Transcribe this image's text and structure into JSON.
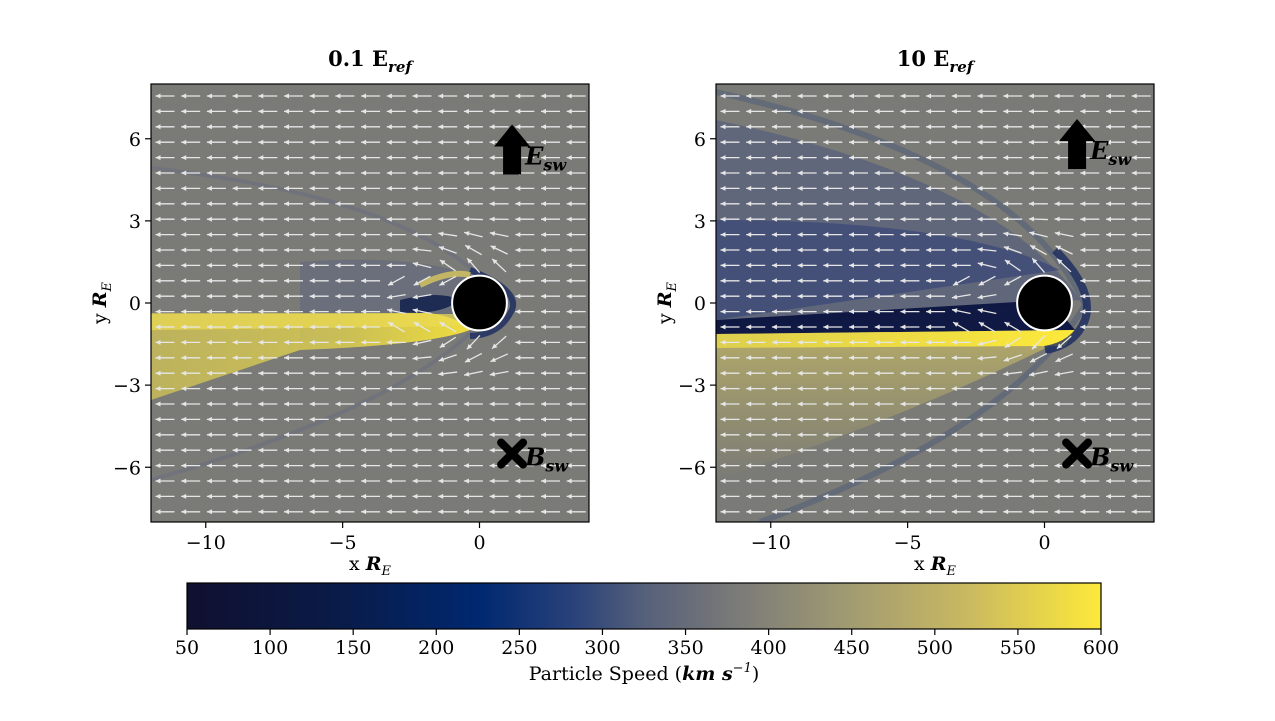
{
  "chart_data": [
    {
      "type": "heatmap",
      "title": "0.1 E_ref",
      "title_main": "0.1 E",
      "title_sub": "ref",
      "xlabel_prefix": "x",
      "xlabel_main": "R",
      "xlabel_sub": "E",
      "ylabel_prefix": "y",
      "ylabel_main": "R",
      "ylabel_sub": "E",
      "xlim": [
        -12,
        4
      ],
      "ylim": [
        -8,
        8
      ],
      "xticks": [
        -10,
        -5,
        0
      ],
      "xtick_labels": [
        "−10",
        "−5",
        "0"
      ],
      "yticks": [
        6,
        3,
        0,
        -3,
        -6
      ],
      "ytick_labels": [
        "6",
        "3",
        "0",
        "−3",
        "−6"
      ],
      "planet_center": [
        0,
        0
      ],
      "planet_radius": 1,
      "annotations": [
        {
          "symbol": "up-arrow",
          "main": "E",
          "sub": "sw",
          "x": 1.3,
          "y": 5.5
        },
        {
          "symbol": "cross",
          "main": "B",
          "sub": "sw",
          "x": 1.3,
          "y": -5.5
        }
      ]
    },
    {
      "type": "heatmap",
      "title": "10 E_ref",
      "title_main": "10 E",
      "title_sub": "ref",
      "xlabel_prefix": "x",
      "xlabel_main": "R",
      "xlabel_sub": "E",
      "ylabel_prefix": "y",
      "ylabel_main": "R",
      "ylabel_sub": "E",
      "xlim": [
        -12,
        4
      ],
      "ylim": [
        -8,
        8
      ],
      "xticks": [
        -10,
        -5,
        0
      ],
      "xtick_labels": [
        "−10",
        "−5",
        "0"
      ],
      "yticks": [
        6,
        3,
        0,
        -3,
        -6
      ],
      "ytick_labels": [
        "6",
        "3",
        "0",
        "−3",
        "−6"
      ],
      "planet_center": [
        0,
        0
      ],
      "planet_radius": 1,
      "annotations": [
        {
          "symbol": "up-arrow",
          "main": "E",
          "sub": "sw",
          "x": 1.3,
          "y": 5.7
        },
        {
          "symbol": "cross",
          "main": "B",
          "sub": "sw",
          "x": 1.3,
          "y": -5.5
        }
      ]
    }
  ],
  "colorbar": {
    "label_prefix": "Particle Speed (",
    "label_unit": "km s",
    "label_exp": "−1",
    "label_suffix": ")",
    "min": 50,
    "max": 600,
    "ticks": [
      50,
      100,
      150,
      200,
      250,
      300,
      350,
      400,
      450,
      500,
      550,
      600
    ],
    "tick_labels": [
      "50",
      "100",
      "150",
      "200",
      "250",
      "300",
      "350",
      "400",
      "450",
      "500",
      "550",
      "600"
    ],
    "colormap": [
      "#101030",
      "#0a1a45",
      "#002870",
      "#28417a",
      "#55607a",
      "#7a7a78",
      "#a09a72",
      "#c8b862",
      "#fde93a"
    ]
  },
  "colors": {
    "background_field": "#7a7a76",
    "arrow": "#e4e4e4",
    "wake_bright": "#e8d84a",
    "wake_dark": "#0b1a4a",
    "planet": "#000000"
  }
}
